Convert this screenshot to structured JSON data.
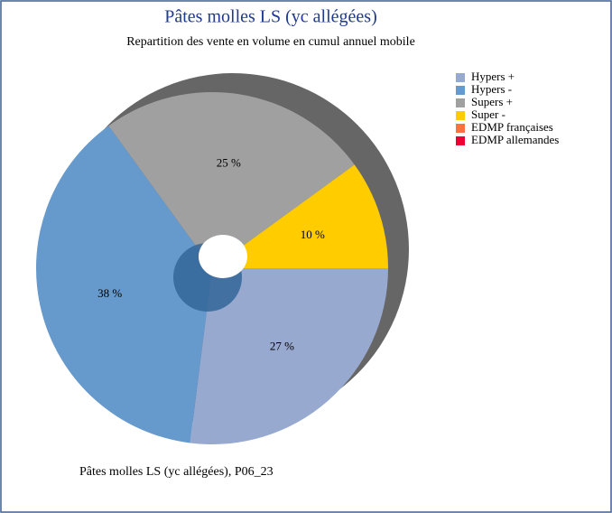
{
  "chart_data": {
    "type": "pie",
    "title": "Pâtes molles LS (yc allégées)",
    "subtitle": "Repartition des vente en volume en cumul annuel mobile",
    "footer": "Pâtes molles LS (yc allégées), P06_23",
    "categories": [
      "Hypers +",
      "Hypers -",
      "Supers +",
      "Super -",
      "EDMP françaises",
      "EDMP allemandes"
    ],
    "values": [
      27,
      38,
      25,
      10,
      0,
      0
    ],
    "value_labels": [
      "27 %",
      "38 %",
      "25 %",
      "10 %",
      null,
      null
    ],
    "colors": [
      "#98a9d0",
      "#6699cc",
      "#a0a0a0",
      "#ffcc00",
      "#ff7043",
      "#ee0033"
    ],
    "legend": "right"
  }
}
